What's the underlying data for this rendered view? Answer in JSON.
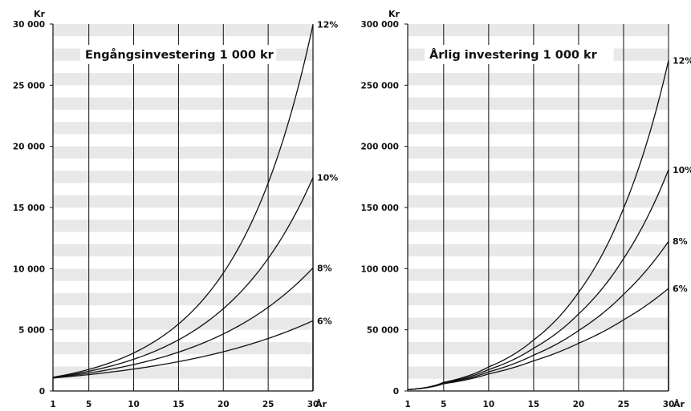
{
  "chart_data": [
    {
      "type": "line",
      "title": "Engångsinvestering 1 000 kr",
      "ylabel": "Kr",
      "xlabel": "År",
      "xlim": [
        1,
        30
      ],
      "ylim": [
        0,
        30000
      ],
      "x_ticks": [
        "1",
        "5",
        "10",
        "15",
        "20",
        "25",
        "30"
      ],
      "y_ticks": [
        "0",
        "5 000",
        "10 000",
        "15 000",
        "20 000",
        "25 000",
        "30 000"
      ],
      "x": [
        1,
        5,
        10,
        15,
        20,
        25,
        30
      ],
      "series": [
        {
          "name": "12%",
          "values": [
            1120,
            1762,
            3106,
            5474,
            9646,
            17000,
            29960
          ]
        },
        {
          "name": "10%",
          "values": [
            1100,
            1611,
            2594,
            4177,
            6727,
            10835,
            17449
          ]
        },
        {
          "name": "8%",
          "values": [
            1080,
            1469,
            2159,
            3172,
            4661,
            6848,
            10063
          ]
        },
        {
          "name": "6%",
          "values": [
            1060,
            1338,
            1791,
            2397,
            3207,
            4292,
            5743
          ]
        }
      ],
      "grid": "horizontal bands",
      "colors": {
        "line": "#111111",
        "band": "#e8e8e8",
        "bg": "#ffffff"
      }
    },
    {
      "type": "line",
      "title": "Årlig investering 1 000 kr",
      "ylabel": "Kr",
      "xlabel": "År",
      "xlim": [
        1,
        30
      ],
      "ylim": [
        0,
        300000
      ],
      "x_ticks": [
        "1",
        "5",
        "10",
        "15",
        "20",
        "25",
        "30"
      ],
      "y_ticks": [
        "0",
        "50 000",
        "100 000",
        "150 000",
        "200 000",
        "250 000",
        "300 000"
      ],
      "x": [
        1,
        5,
        10,
        15,
        20,
        25,
        30
      ],
      "series": [
        {
          "name": "12%",
          "values": [
            1120,
            7115,
            19655,
            41753,
            80699,
            149334,
            270293
          ]
        },
        {
          "name": "10%",
          "values": [
            1100,
            6716,
            17531,
            34950,
            63002,
            108182,
            180943
          ]
        },
        {
          "name": "8%",
          "values": [
            1080,
            6336,
            15645,
            29324,
            49423,
            78954,
            122346
          ]
        },
        {
          "name": "6%",
          "values": [
            1060,
            5975,
            13972,
            24673,
            38993,
            58156,
            83802
          ]
        }
      ],
      "grid": "horizontal bands",
      "colors": {
        "line": "#111111",
        "band": "#e8e8e8",
        "bg": "#ffffff"
      }
    }
  ]
}
